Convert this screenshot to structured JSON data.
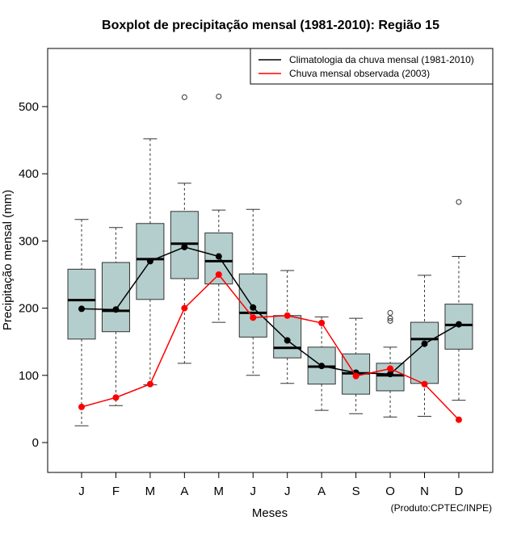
{
  "chart_data": {
    "type": "boxplot",
    "title": "Boxplot de precipitação mensal (1981-2010): Região 15",
    "xlabel": "Meses",
    "ylabel": "Precipitação mensal (mm)",
    "ylim": [
      -45,
      585
    ],
    "yticks": [
      0,
      100,
      200,
      300,
      400,
      500
    ],
    "categories": [
      "J",
      "F",
      "M",
      "A",
      "M",
      "J",
      "J",
      "A",
      "S",
      "O",
      "N",
      "D"
    ],
    "boxes": [
      {
        "low": 25,
        "q1": 154,
        "median": 212,
        "q3": 258,
        "high": 332,
        "outliers": []
      },
      {
        "low": 55,
        "q1": 165,
        "median": 196,
        "q3": 268,
        "high": 320,
        "outliers": []
      },
      {
        "low": 86,
        "q1": 213,
        "median": 273,
        "q3": 326,
        "high": 452,
        "outliers": []
      },
      {
        "low": 118,
        "q1": 244,
        "median": 296,
        "q3": 344,
        "high": 386,
        "outliers": [
          514
        ]
      },
      {
        "low": 179,
        "q1": 236,
        "median": 270,
        "q3": 312,
        "high": 346,
        "outliers": [
          515
        ]
      },
      {
        "low": 100,
        "q1": 157,
        "median": 193,
        "q3": 251,
        "high": 347,
        "outliers": []
      },
      {
        "low": 88,
        "q1": 126,
        "median": 141,
        "q3": 189,
        "high": 256,
        "outliers": []
      },
      {
        "low": 48,
        "q1": 87,
        "median": 113,
        "q3": 142,
        "high": 187,
        "outliers": []
      },
      {
        "low": 43,
        "q1": 72,
        "median": 103,
        "q3": 132,
        "high": 185,
        "outliers": []
      },
      {
        "low": 38,
        "q1": 77,
        "median": 100,
        "q3": 118,
        "high": 142,
        "outliers": [
          181,
          185,
          193
        ]
      },
      {
        "low": 39,
        "q1": 88,
        "median": 154,
        "q3": 179,
        "high": 249,
        "outliers": []
      },
      {
        "low": 63,
        "q1": 139,
        "median": 175,
        "q3": 206,
        "high": 277,
        "outliers": [
          358
        ]
      }
    ],
    "series": [
      {
        "name": "Climatologia da chuva mensal (1981-2010)",
        "color": "#000000",
        "values": [
          199,
          198,
          270,
          291,
          277,
          201,
          152,
          114,
          104,
          102,
          147,
          176
        ]
      },
      {
        "name": "Chuva mensal observada (2003)",
        "color": "#ff0000",
        "values": [
          53,
          67,
          87,
          200,
          250,
          186,
          189,
          178,
          99,
          110,
          87,
          34
        ]
      }
    ],
    "legend_position": "top-right",
    "box_fill": "#b4cecd",
    "annotation": "(Produto:CPTEC/INPE)"
  }
}
